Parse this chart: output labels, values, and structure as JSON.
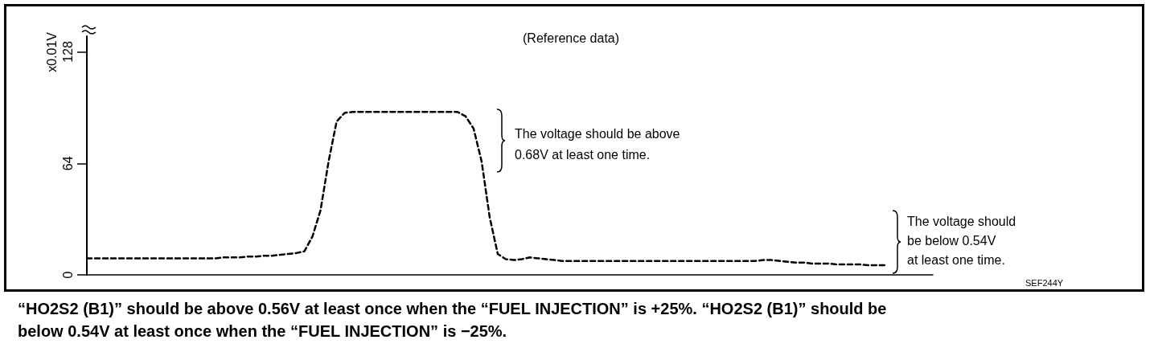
{
  "chart_data": {
    "type": "line",
    "title": "(Reference data)",
    "ylabel": "x0.01V",
    "categories": [
      null,
      null,
      null,
      null,
      null,
      null,
      null,
      null,
      null,
      null,
      null,
      null,
      null,
      null,
      null,
      null,
      null,
      null,
      null,
      null,
      null,
      null,
      null,
      null,
      null,
      null,
      null,
      null,
      null,
      null,
      null,
      null,
      null,
      null,
      null,
      null,
      null,
      null,
      null,
      null,
      null,
      null,
      null,
      null,
      null,
      null,
      null,
      null,
      null,
      null,
      null,
      null,
      null,
      null,
      null,
      null,
      null,
      null,
      null,
      null,
      null,
      null,
      null,
      null,
      null,
      null,
      null,
      null,
      null,
      null,
      null,
      null,
      null,
      null,
      null,
      null,
      null,
      null,
      null,
      null,
      null,
      null,
      null,
      null,
      null,
      null,
      null,
      null,
      null,
      null,
      null,
      null,
      null,
      null,
      null,
      null,
      null,
      null,
      null,
      null,
      null,
      null,
      null,
      null,
      null,
      null
    ],
    "series": [
      {
        "color": "#000000",
        "values": [
          9.5,
          9.5,
          9.5,
          9.5,
          9.5,
          9.5,
          9.5,
          9.5,
          9.5,
          9.5,
          9.5,
          9.5,
          9.5,
          9.5,
          9.5,
          9.5,
          9.5,
          10,
          10,
          10,
          10.5,
          10.5,
          11,
          11,
          11.5,
          12,
          12.5,
          13.5,
          22,
          37,
          65,
          88,
          93,
          93.5,
          93.5,
          93.5,
          93.5,
          93.5,
          93.5,
          93.5,
          93.5,
          93.5,
          93.5,
          93.5,
          93.5,
          93.5,
          93.5,
          91,
          84,
          65,
          33,
          12,
          9,
          8.5,
          9,
          10,
          9.5,
          9,
          8.5,
          8,
          8,
          8,
          8,
          8,
          8,
          8,
          8,
          8,
          8,
          8,
          8,
          8,
          8,
          8,
          8,
          8,
          8,
          8,
          8,
          8,
          8,
          8,
          8,
          8,
          8.5,
          8.5,
          8,
          7.5,
          7,
          7,
          6.5,
          6.5,
          6.5,
          6,
          6,
          6,
          6,
          5.5,
          5.5,
          5.5,
          null,
          null,
          null,
          null,
          null,
          null
        ]
      }
    ],
    "ylim": [
      0,
      137
    ],
    "yticks": [
      0,
      64,
      128
    ],
    "grid": false,
    "marker": "none",
    "line_style": "dashed",
    "annotations": [
      "The voltage should be above\n0.68V at least one time.",
      "The voltage should\nbe below 0.54V\nat least one time.",
      "SEF244Y",
      "“HO2S2 (B1)” should be above 0.56V at least once when the “FUEL INJECTION” is +25%. “HO2S2 (B1)” should be below 0.54V at least once when the “FUEL INJECTION” is −25%."
    ]
  }
}
